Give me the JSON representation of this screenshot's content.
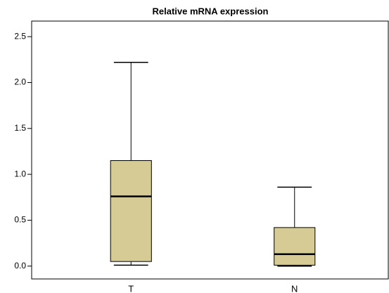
{
  "chart_data": {
    "type": "box",
    "title": "Relative mRNA expression",
    "categories": [
      "T",
      "N"
    ],
    "boxes": [
      {
        "min": 0.01,
        "q1": 0.05,
        "median": 0.76,
        "q3": 1.15,
        "max": 2.22
      },
      {
        "min": 0.0,
        "q1": 0.01,
        "median": 0.13,
        "q3": 0.42,
        "max": 0.86
      }
    ],
    "color": "#d6cb95",
    "ylim": [
      -0.14,
      2.67
    ],
    "yticks": [
      {
        "value": 0,
        "label": "0.0"
      },
      0.5,
      {
        "value": 1,
        "label": "1.0"
      },
      1.5,
      {
        "value": 2,
        "label": "2.0"
      },
      2.5
    ]
  }
}
